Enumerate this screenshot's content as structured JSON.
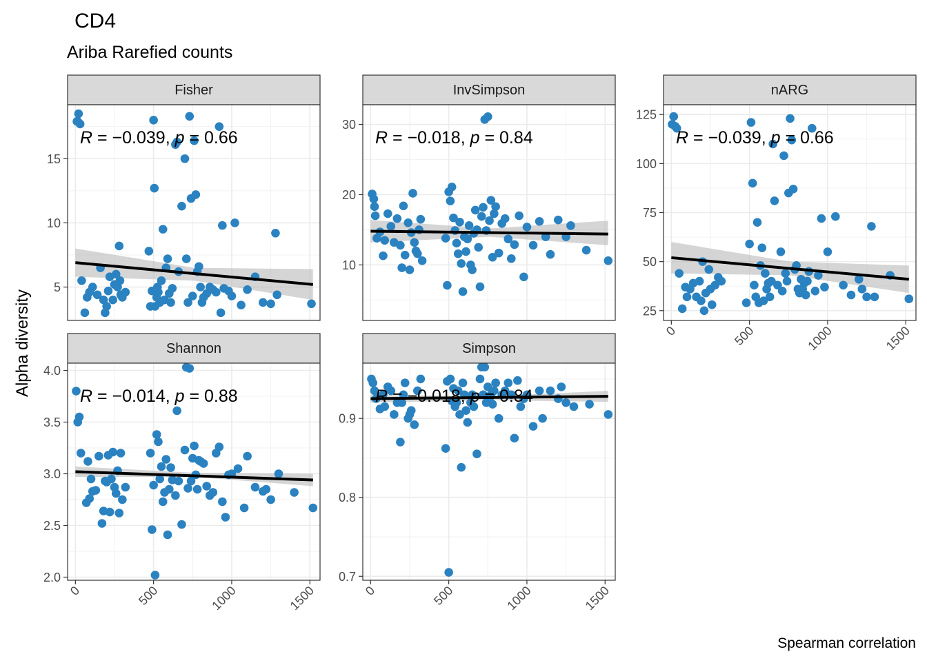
{
  "title": "CD4",
  "subtitle": "Ariba Rarefied counts",
  "ylabel": "Alpha diversity",
  "caption": "Spearman correlation",
  "colors": {
    "point": "#2b82c0",
    "line": "#000000",
    "band": "#b3b3b3",
    "strip": "#d9d9d9",
    "grid": "#ebebeb"
  },
  "chart_data": [
    {
      "type": "scatter",
      "panel": "Fisher",
      "x_ticks": [
        0,
        500,
        1000,
        1500
      ],
      "xlim": [
        -50,
        1565
      ],
      "y_ticks": [
        5,
        10,
        15
      ],
      "ylim": [
        2.4,
        19.2
      ],
      "stat_label": {
        "R": "−0.039",
        "p": "0.66"
      },
      "fit": {
        "x": [
          0,
          1520
        ],
        "y": [
          6.9,
          5.2
        ]
      },
      "band": {
        "x": [
          0,
          760,
          1520
        ],
        "upper": [
          8.0,
          6.5,
          6.4
        ],
        "lower": [
          5.8,
          5.5,
          4.0
        ]
      },
      "x": [
        10,
        20,
        30,
        15,
        40,
        60,
        75,
        90,
        110,
        140,
        160,
        180,
        190,
        200,
        210,
        220,
        240,
        250,
        260,
        270,
        280,
        285,
        290,
        300,
        320,
        470,
        480,
        490,
        500,
        505,
        510,
        520,
        525,
        530,
        540,
        550,
        560,
        570,
        580,
        590,
        600,
        610,
        620,
        640,
        650,
        660,
        680,
        700,
        710,
        720,
        730,
        740,
        750,
        760,
        770,
        780,
        790,
        800,
        810,
        820,
        840,
        860,
        880,
        900,
        920,
        930,
        940,
        950,
        980,
        1000,
        1020,
        1060,
        1100,
        1150,
        1200,
        1250,
        1280,
        1290,
        1510
      ],
      "y": [
        17.9,
        18.5,
        17.7,
        17.9,
        5.5,
        3.0,
        4.2,
        4.6,
        5.0,
        4.4,
        6.5,
        4.0,
        3.0,
        3.5,
        4.7,
        5.8,
        4.0,
        5.2,
        6.0,
        5.0,
        8.2,
        5.5,
        4.4,
        4.2,
        4.6,
        7.8,
        3.5,
        4.7,
        18.0,
        12.7,
        3.5,
        4.2,
        5.0,
        4.6,
        3.8,
        5.5,
        9.5,
        4.0,
        6.5,
        7.2,
        4.5,
        3.8,
        4.9,
        16.1,
        16.3,
        6.2,
        11.3,
        15.0,
        7.2,
        3.8,
        18.3,
        11.9,
        4.3,
        16.4,
        12.2,
        6.2,
        6.6,
        5.0,
        3.8,
        4.2,
        4.5,
        5.0,
        4.8,
        4.6,
        17.5,
        3.0,
        9.8,
        4.9,
        4.7,
        4.3,
        10.0,
        3.6,
        4.8,
        5.8,
        3.8,
        3.7,
        9.2,
        4.4,
        3.7
      ]
    },
    {
      "type": "scatter",
      "panel": "InvSimpson",
      "x_ticks": [
        0,
        500,
        1000,
        1500
      ],
      "xlim": [
        -50,
        1565
      ],
      "y_ticks": [
        10,
        20,
        30
      ],
      "ylim": [
        2.1,
        32.8
      ],
      "stat_label": {
        "R": "−0.018",
        "p": "0.84"
      },
      "fit": {
        "x": [
          0,
          1520
        ],
        "y": [
          14.8,
          14.4
        ]
      },
      "band": {
        "x": [
          0,
          760,
          1520
        ],
        "upper": [
          16.4,
          15.2,
          16.3
        ],
        "lower": [
          13.2,
          14.0,
          12.8
        ]
      },
      "x": [
        10,
        20,
        25,
        30,
        40,
        60,
        80,
        90,
        110,
        130,
        150,
        170,
        190,
        200,
        210,
        220,
        240,
        250,
        260,
        270,
        280,
        290,
        300,
        310,
        320,
        330,
        480,
        490,
        500,
        510,
        520,
        530,
        540,
        550,
        560,
        570,
        580,
        590,
        600,
        610,
        620,
        630,
        640,
        650,
        660,
        670,
        680,
        690,
        700,
        710,
        720,
        730,
        740,
        750,
        760,
        770,
        780,
        790,
        800,
        820,
        840,
        860,
        880,
        900,
        920,
        950,
        980,
        1000,
        1040,
        1080,
        1120,
        1150,
        1200,
        1250,
        1280,
        1380,
        1520
      ],
      "y": [
        20.1,
        19.4,
        18.3,
        17.0,
        13.8,
        14.7,
        11.3,
        13.5,
        17.3,
        15.5,
        13.2,
        16.6,
        12.8,
        9.6,
        18.4,
        11.4,
        16.0,
        9.3,
        14.6,
        20.2,
        13.2,
        12.0,
        11.6,
        15.0,
        16.5,
        10.6,
        13.8,
        7.1,
        20.4,
        19.1,
        21.1,
        16.7,
        14.9,
        13.1,
        11.6,
        16.1,
        10.2,
        6.2,
        14.0,
        11.9,
        13.7,
        15.6,
        10.0,
        9.3,
        14.5,
        17.8,
        15.0,
        12.5,
        6.9,
        16.9,
        18.2,
        30.7,
        14.9,
        31.1,
        16.3,
        19.2,
        11.1,
        17.3,
        18.3,
        11.7,
        15.9,
        16.6,
        13.7,
        10.9,
        12.9,
        17.0,
        8.3,
        15.4,
        12.8,
        16.2,
        14.0,
        11.5,
        16.4,
        14.0,
        15.6,
        12.1,
        10.6
      ]
    },
    {
      "type": "scatter",
      "panel": "nARG",
      "x_ticks": [
        0,
        500,
        1000,
        1500
      ],
      "xlim": [
        -50,
        1565
      ],
      "y_ticks": [
        25,
        50,
        75,
        100,
        125
      ],
      "ylim": [
        20,
        130
      ],
      "stat_label": {
        "R": "−0.039",
        "p": "0.66"
      },
      "fit": {
        "x": [
          0,
          1520
        ],
        "y": [
          52,
          41
        ]
      },
      "band": {
        "x": [
          0,
          760,
          1520
        ],
        "upper": [
          60,
          50,
          48
        ],
        "lower": [
          44,
          43,
          34
        ]
      },
      "x": [
        5,
        15,
        25,
        35,
        50,
        70,
        90,
        100,
        120,
        140,
        160,
        180,
        190,
        200,
        210,
        220,
        240,
        250,
        260,
        280,
        300,
        320,
        480,
        500,
        510,
        520,
        530,
        540,
        550,
        560,
        570,
        580,
        590,
        600,
        610,
        620,
        630,
        640,
        650,
        660,
        680,
        700,
        710,
        720,
        730,
        740,
        750,
        760,
        770,
        780,
        790,
        800,
        810,
        820,
        830,
        840,
        850,
        860,
        870,
        880,
        900,
        920,
        940,
        960,
        980,
        1000,
        1050,
        1100,
        1150,
        1200,
        1220,
        1250,
        1280,
        1300,
        1400,
        1520
      ],
      "y": [
        120,
        124,
        119,
        118,
        44,
        26,
        37,
        32,
        36,
        39,
        32,
        40,
        30,
        50,
        25,
        34,
        46,
        36,
        28,
        38,
        42,
        40,
        29,
        59,
        121,
        90,
        38,
        32,
        70,
        29,
        48,
        57,
        30,
        44,
        36,
        39,
        32,
        40,
        110,
        81,
        38,
        55,
        35,
        104,
        44,
        40,
        85,
        123,
        112,
        87,
        46,
        48,
        36,
        34,
        41,
        36,
        39,
        33,
        40,
        45,
        118,
        35,
        43,
        72,
        37,
        55,
        73,
        38,
        33,
        41,
        36,
        32,
        68,
        32,
        43,
        31
      ]
    },
    {
      "type": "scatter",
      "panel": "Shannon",
      "x_ticks": [
        0,
        500,
        1000,
        1500
      ],
      "xlim": [
        -50,
        1565
      ],
      "y_ticks": [
        "2.0",
        "2.5",
        "3.0",
        "3.5",
        "4.0"
      ],
      "ylim": [
        1.97,
        4.07
      ],
      "stat_label": {
        "R": "−0.014",
        "p": "0.88"
      },
      "fit": {
        "x": [
          0,
          1520
        ],
        "y": [
          3.02,
          2.94
        ]
      },
      "band": {
        "x": [
          0,
          760,
          1520
        ],
        "upper": [
          3.07,
          3.01,
          3.0
        ],
        "lower": [
          2.97,
          2.97,
          2.88
        ]
      },
      "x": [
        5,
        15,
        25,
        35,
        70,
        80,
        90,
        100,
        110,
        130,
        150,
        170,
        180,
        190,
        200,
        210,
        220,
        230,
        240,
        250,
        260,
        270,
        280,
        290,
        300,
        320,
        480,
        490,
        500,
        510,
        520,
        530,
        540,
        550,
        560,
        570,
        580,
        590,
        600,
        610,
        620,
        640,
        650,
        660,
        680,
        700,
        710,
        720,
        730,
        740,
        750,
        760,
        770,
        780,
        790,
        800,
        820,
        840,
        860,
        880,
        900,
        920,
        940,
        960,
        980,
        1000,
        1040,
        1080,
        1100,
        1150,
        1200,
        1220,
        1250,
        1300,
        1400,
        1520
      ],
      "y": [
        3.8,
        3.5,
        3.55,
        3.2,
        2.72,
        3.12,
        2.76,
        2.95,
        2.83,
        2.84,
        3.17,
        2.52,
        2.64,
        2.93,
        2.92,
        3.18,
        2.63,
        2.95,
        3.21,
        2.87,
        2.81,
        3.03,
        2.62,
        3.2,
        2.75,
        2.87,
        3.2,
        2.46,
        2.89,
        2.02,
        3.38,
        3.31,
        2.95,
        3.07,
        2.73,
        2.82,
        3.14,
        2.41,
        2.85,
        3.06,
        2.94,
        2.79,
        3.61,
        2.93,
        2.51,
        3.23,
        4.03,
        2.86,
        4.02,
        2.93,
        3.15,
        3.27,
        2.99,
        2.85,
        3.13,
        3.12,
        3.1,
        2.88,
        2.79,
        2.82,
        3.2,
        3.26,
        2.73,
        2.58,
        2.99,
        3.0,
        3.05,
        2.67,
        3.17,
        2.87,
        2.83,
        2.85,
        2.75,
        3.0,
        2.82,
        2.67
      ]
    },
    {
      "type": "scatter",
      "panel": "Simpson",
      "x_ticks": [
        0,
        500,
        1000,
        1500
      ],
      "xlim": [
        -50,
        1565
      ],
      "y_ticks": [
        "0.7",
        "0.8",
        "0.9"
      ],
      "ylim": [
        0.695,
        0.97
      ],
      "stat_label": {
        "R": "−0.018",
        "p": "0.84"
      },
      "fit": {
        "x": [
          0,
          1520
        ],
        "y": [
          0.925,
          0.928
        ]
      },
      "band": {
        "x": [
          0,
          760,
          1520
        ],
        "upper": [
          0.93,
          0.928,
          0.935
        ],
        "lower": [
          0.92,
          0.923,
          0.921
        ]
      },
      "x": [
        5,
        15,
        25,
        35,
        60,
        80,
        90,
        110,
        130,
        150,
        170,
        190,
        200,
        210,
        220,
        240,
        250,
        260,
        280,
        300,
        320,
        480,
        490,
        500,
        510,
        520,
        530,
        540,
        550,
        560,
        570,
        580,
        590,
        600,
        610,
        620,
        640,
        650,
        660,
        680,
        700,
        710,
        720,
        730,
        740,
        750,
        760,
        770,
        780,
        790,
        800,
        820,
        840,
        860,
        880,
        900,
        920,
        940,
        960,
        980,
        1000,
        1040,
        1080,
        1100,
        1150,
        1200,
        1220,
        1250,
        1300,
        1400,
        1520
      ],
      "y": [
        0.95,
        0.945,
        0.935,
        0.925,
        0.912,
        0.93,
        0.915,
        0.94,
        0.935,
        0.905,
        0.92,
        0.87,
        0.92,
        0.93,
        0.945,
        0.9,
        0.905,
        0.91,
        0.892,
        0.935,
        0.95,
        0.862,
        0.947,
        0.705,
        0.95,
        0.922,
        0.938,
        0.915,
        0.92,
        0.935,
        0.905,
        0.838,
        0.945,
        0.93,
        0.91,
        0.895,
        0.92,
        0.93,
        0.915,
        0.855,
        0.95,
        0.965,
        0.93,
        0.965,
        0.92,
        0.94,
        0.925,
        0.93,
        0.918,
        0.935,
        0.945,
        0.9,
        0.93,
        0.935,
        0.945,
        0.93,
        0.875,
        0.948,
        0.915,
        0.925,
        0.93,
        0.89,
        0.935,
        0.9,
        0.935,
        0.925,
        0.94,
        0.92,
        0.915,
        0.918,
        0.905
      ]
    }
  ]
}
